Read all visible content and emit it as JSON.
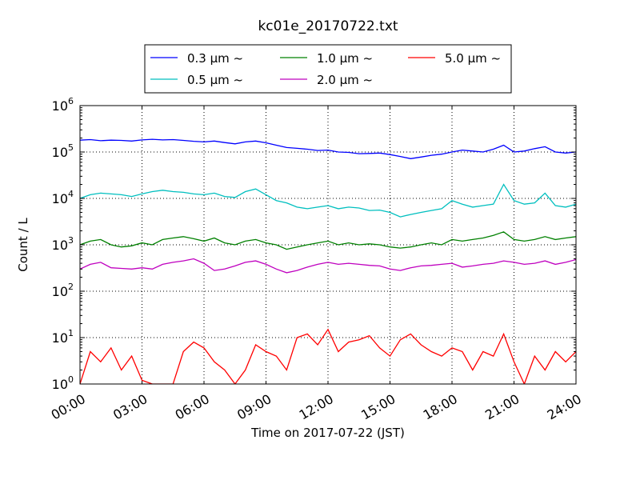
{
  "chart_data": {
    "type": "line",
    "title": "kc01e_20170722.txt",
    "xlabel": "Time on 2017-07-22 (JST)",
    "ylabel": "Count / L",
    "x_unit": "hours",
    "xlim": [
      0,
      24
    ],
    "ylim": [
      1,
      1000000
    ],
    "yscale": "log",
    "grid": true,
    "legend_position": "top-center",
    "x_ticks": [
      0,
      3,
      6,
      9,
      12,
      15,
      18,
      21,
      24
    ],
    "x_tick_labels": [
      "00:00",
      "03:00",
      "06:00",
      "09:00",
      "12:00",
      "15:00",
      "18:00",
      "21:00",
      "24:00"
    ],
    "y_ticks": [
      1,
      10,
      100,
      1000,
      10000,
      100000,
      1000000
    ],
    "y_tick_labels": [
      {
        "base": "10",
        "exp": "0"
      },
      {
        "base": "10",
        "exp": "1"
      },
      {
        "base": "10",
        "exp": "2"
      },
      {
        "base": "10",
        "exp": "3"
      },
      {
        "base": "10",
        "exp": "4"
      },
      {
        "base": "10",
        "exp": "5"
      },
      {
        "base": "10",
        "exp": "6"
      }
    ],
    "series": [
      {
        "name": "0.3 µm ~",
        "color": "#0000ff",
        "x": [
          0,
          0.5,
          1,
          1.5,
          2,
          2.5,
          3,
          3.5,
          4,
          4.5,
          5,
          5.5,
          6,
          6.5,
          7,
          7.5,
          8,
          8.5,
          9,
          9.5,
          10,
          10.5,
          11,
          11.5,
          12,
          12.5,
          13,
          13.5,
          14,
          14.5,
          15,
          15.5,
          16,
          16.5,
          17,
          17.5,
          18,
          18.5,
          19,
          19.5,
          20,
          20.5,
          21,
          21.5,
          22,
          22.5,
          23,
          23.5,
          24
        ],
        "values": [
          180000,
          185000,
          175000,
          180000,
          178000,
          172000,
          182000,
          188000,
          182000,
          185000,
          178000,
          170000,
          165000,
          172000,
          160000,
          150000,
          165000,
          172000,
          158000,
          140000,
          125000,
          120000,
          115000,
          108000,
          110000,
          100000,
          98000,
          92000,
          93000,
          95000,
          88000,
          80000,
          72000,
          78000,
          85000,
          90000,
          100000,
          110000,
          105000,
          100000,
          115000,
          140000,
          100000,
          105000,
          118000,
          130000,
          100000,
          95000,
          100000
        ]
      },
      {
        "name": "0.5 µm ~",
        "color": "#00bfbf",
        "x": [
          0,
          0.5,
          1,
          1.5,
          2,
          2.5,
          3,
          3.5,
          4,
          4.5,
          5,
          5.5,
          6,
          6.5,
          7,
          7.5,
          8,
          8.5,
          9,
          9.5,
          10,
          10.5,
          11,
          11.5,
          12,
          12.5,
          13,
          13.5,
          14,
          14.5,
          15,
          15.5,
          16,
          16.5,
          17,
          17.5,
          18,
          18.5,
          19,
          19.5,
          20,
          20.5,
          21,
          21.5,
          22,
          22.5,
          23,
          23.5,
          24
        ],
        "values": [
          10000,
          12000,
          13000,
          12500,
          12000,
          11000,
          12500,
          14000,
          15000,
          14000,
          13500,
          12500,
          12000,
          13000,
          11000,
          10500,
          14000,
          16000,
          12000,
          9000,
          8000,
          6500,
          6000,
          6500,
          7000,
          6000,
          6500,
          6200,
          5500,
          5600,
          5000,
          4000,
          4500,
          5000,
          5500,
          6000,
          9000,
          7500,
          6500,
          7000,
          7500,
          20000,
          9000,
          7500,
          8000,
          13000,
          7000,
          6500,
          7500
        ]
      },
      {
        "name": "1.0 µm ~",
        "color": "#008000",
        "x": [
          0,
          0.5,
          1,
          1.5,
          2,
          2.5,
          3,
          3.5,
          4,
          4.5,
          5,
          5.5,
          6,
          6.5,
          7,
          7.5,
          8,
          8.5,
          9,
          9.5,
          10,
          10.5,
          11,
          11.5,
          12,
          12.5,
          13,
          13.5,
          14,
          14.5,
          15,
          15.5,
          16,
          16.5,
          17,
          17.5,
          18,
          18.5,
          19,
          19.5,
          20,
          20.5,
          21,
          21.5,
          22,
          22.5,
          23,
          23.5,
          24
        ],
        "values": [
          1000,
          1200,
          1300,
          1000,
          900,
          950,
          1100,
          1000,
          1300,
          1400,
          1500,
          1350,
          1200,
          1400,
          1100,
          1000,
          1200,
          1300,
          1100,
          1000,
          800,
          900,
          1000,
          1100,
          1200,
          1000,
          1100,
          1000,
          1050,
          1000,
          900,
          850,
          900,
          1000,
          1100,
          1000,
          1300,
          1200,
          1300,
          1400,
          1600,
          1900,
          1300,
          1200,
          1300,
          1500,
          1300,
          1400,
          1500
        ]
      },
      {
        "name": "2.0 µm ~",
        "color": "#bf00bf",
        "x": [
          0,
          0.5,
          1,
          1.5,
          2,
          2.5,
          3,
          3.5,
          4,
          4.5,
          5,
          5.5,
          6,
          6.5,
          7,
          7.5,
          8,
          8.5,
          9,
          9.5,
          10,
          10.5,
          11,
          11.5,
          12,
          12.5,
          13,
          13.5,
          14,
          14.5,
          15,
          15.5,
          16,
          16.5,
          17,
          17.5,
          18,
          18.5,
          19,
          19.5,
          20,
          20.5,
          21,
          21.5,
          22,
          22.5,
          23,
          23.5,
          24
        ],
        "values": [
          300,
          380,
          420,
          320,
          310,
          300,
          320,
          300,
          380,
          420,
          450,
          500,
          400,
          280,
          300,
          350,
          420,
          450,
          380,
          300,
          250,
          280,
          330,
          380,
          420,
          380,
          400,
          380,
          360,
          350,
          300,
          280,
          320,
          350,
          360,
          380,
          400,
          330,
          350,
          380,
          400,
          450,
          420,
          380,
          400,
          450,
          380,
          420,
          480
        ]
      },
      {
        "name": "5.0 µm ~",
        "color": "#ff0000",
        "x": [
          0,
          0.5,
          1,
          1.5,
          2,
          2.5,
          3,
          3.5,
          4,
          4.5,
          5,
          5.5,
          6,
          6.5,
          7,
          7.5,
          8,
          8.5,
          9,
          9.5,
          10,
          10.5,
          11,
          11.5,
          12,
          12.5,
          13,
          13.5,
          14,
          14.5,
          15,
          15.5,
          16,
          16.5,
          17,
          17.5,
          18,
          18.5,
          19,
          19.5,
          20,
          20.5,
          21,
          21.5,
          22,
          22.5,
          23,
          23.5,
          24
        ],
        "values": [
          1,
          5,
          3,
          6,
          2,
          4,
          1.2,
          1,
          1,
          1,
          5,
          8,
          6,
          3,
          2,
          1,
          2,
          7,
          5,
          4,
          2,
          10,
          12,
          7,
          15,
          5,
          8,
          9,
          11,
          6,
          4,
          9,
          12,
          7,
          5,
          4,
          6,
          5,
          2,
          5,
          4,
          12,
          3,
          1,
          4,
          2,
          5,
          3,
          5
        ]
      }
    ]
  }
}
